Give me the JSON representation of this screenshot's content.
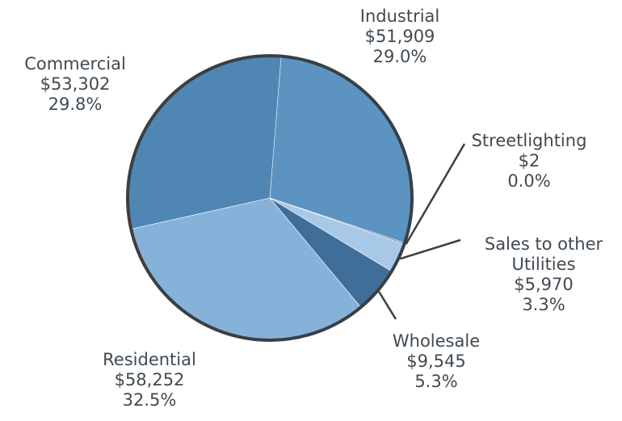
{
  "chart_data": {
    "type": "pie",
    "title": "",
    "slices": [
      {
        "label": "Industrial",
        "amount": "$51,909",
        "percent": "29.0%",
        "value": 51909,
        "color": "#5d93c0"
      },
      {
        "label": "Streetlighting",
        "amount": "$2",
        "percent": "0.0%",
        "value": 2,
        "color": "#4a7fad"
      },
      {
        "label": "Sales to other Utilities",
        "label_lines": [
          "Sales to other",
          "Utilities"
        ],
        "amount": "$5,970",
        "percent": "3.3%",
        "value": 5970,
        "color": "#a8c8e8"
      },
      {
        "label": "Wholesale",
        "amount": "$9,545",
        "percent": "5.3%",
        "value": 9545,
        "color": "#3f6f98"
      },
      {
        "label": "Residential",
        "amount": "$58,252",
        "percent": "32.5%",
        "value": 58252,
        "color": "#86b2da"
      },
      {
        "label": "Commercial",
        "amount": "$53,302",
        "percent": "29.8%",
        "value": 53302,
        "color": "#4f86b4"
      }
    ],
    "colors": {
      "outline": "#3a3f44",
      "leader": "#3a3f44",
      "text": "#404a52"
    }
  }
}
